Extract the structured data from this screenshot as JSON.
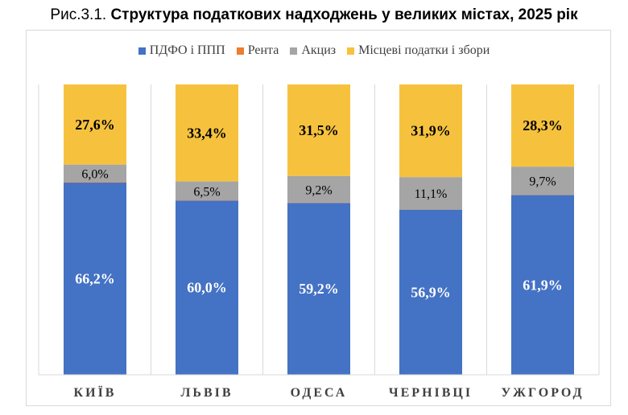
{
  "title": {
    "prefix": "Рис.3.1.",
    "main": "Структура податкових надходжень у великих містах, 2025 рік"
  },
  "chart_data": {
    "type": "bar",
    "stacked": true,
    "categories": [
      "КИЇВ",
      "ЛЬВІВ",
      "ОДЕСА",
      "ЧЕРНІВЦІ",
      "УЖГОРОД"
    ],
    "series": [
      {
        "name": "ПДФО і ППП",
        "color": "#4472c4",
        "values": [
          66.2,
          60.0,
          59.2,
          56.9,
          61.9
        ],
        "labels": [
          "66,2%",
          "60,0%",
          "59,2%",
          "56,9%",
          "61,9%"
        ]
      },
      {
        "name": "Рента",
        "color": "#ed7d31",
        "values": [
          0.2,
          0.1,
          0.1,
          0.1,
          0.1
        ],
        "labels": [
          "",
          "",
          "",
          "",
          ""
        ]
      },
      {
        "name": "Акциз",
        "color": "#a5a5a5",
        "values": [
          6.0,
          6.5,
          9.2,
          11.1,
          9.7
        ],
        "labels": [
          "6,0%",
          "6,5%",
          "9,2%",
          "11,1%",
          "9,7%"
        ]
      },
      {
        "name": "Місцеві податки і збори",
        "color": "#f6c23e",
        "values": [
          27.6,
          33.4,
          31.5,
          31.9,
          28.3
        ],
        "labels": [
          "27,6%",
          "33,4%",
          "31,5%",
          "31,9%",
          "28,3%"
        ]
      }
    ],
    "ylim": [
      0,
      100
    ],
    "grid": false,
    "legend_position": "top"
  }
}
